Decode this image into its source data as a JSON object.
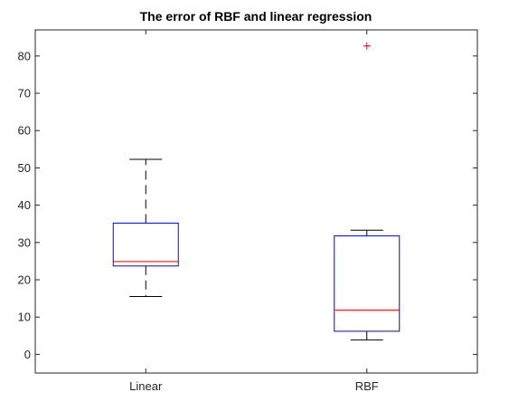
{
  "chart_data": {
    "type": "box",
    "title": "The error of RBF and linear regression",
    "xlabel": "",
    "ylabel": "",
    "categories": [
      "Linear",
      "RBF"
    ],
    "ylim": [
      -5,
      87
    ],
    "yticks": [
      0,
      10,
      20,
      30,
      40,
      50,
      60,
      70,
      80
    ],
    "grid": false,
    "boxes": [
      {
        "category": "Linear",
        "whisker_low": 15.5,
        "q1": 23.7,
        "median": 24.9,
        "q3": 35.2,
        "whisker_high": 52.3,
        "outliers": []
      },
      {
        "category": "RBF",
        "whisker_low": 3.9,
        "q1": 6.2,
        "median": 11.9,
        "q3": 31.8,
        "whisker_high": 33.3,
        "outliers": [
          82.7
        ]
      }
    ],
    "colors": {
      "box": "#0000ff",
      "median": "#ff0000",
      "whisker": "#000000",
      "outlier": "#ff0000",
      "axes": "#262626"
    }
  }
}
